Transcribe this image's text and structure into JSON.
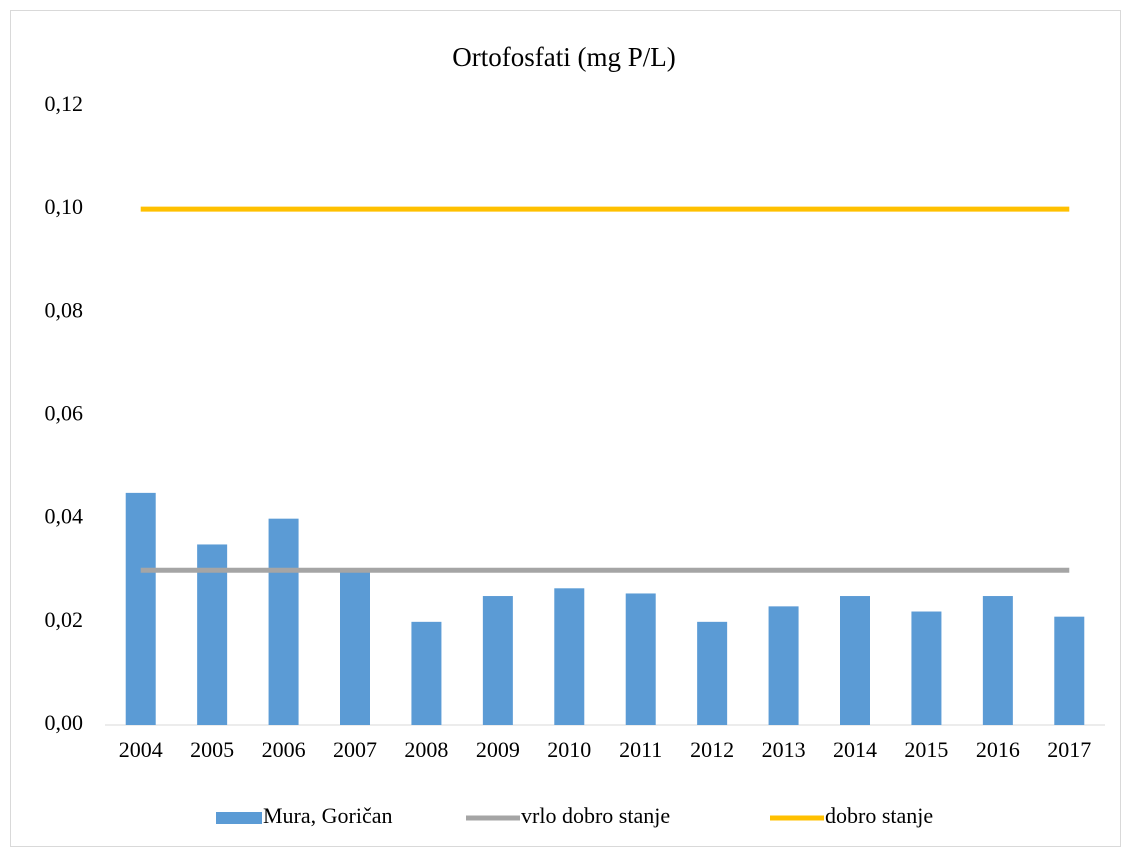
{
  "chart_data": {
    "type": "bar",
    "title": "Ortofosfati (mg P/L)",
    "categories": [
      "2004",
      "2005",
      "2006",
      "2007",
      "2008",
      "2009",
      "2010",
      "2011",
      "2012",
      "2013",
      "2014",
      "2015",
      "2016",
      "2017"
    ],
    "series": [
      {
        "name": "Mura, Goričan",
        "type": "bar",
        "color": "#5b9bd5",
        "values": [
          0.045,
          0.035,
          0.04,
          0.03,
          0.02,
          0.025,
          0.0265,
          0.0255,
          0.02,
          0.023,
          0.025,
          0.022,
          0.025,
          0.021
        ]
      },
      {
        "name": "vrlo dobro stanje",
        "type": "line",
        "color": "#a5a5a5",
        "values": [
          0.03,
          0.03,
          0.03,
          0.03,
          0.03,
          0.03,
          0.03,
          0.03,
          0.03,
          0.03,
          0.03,
          0.03,
          0.03,
          0.03
        ]
      },
      {
        "name": "dobro stanje",
        "type": "line",
        "color": "#ffc000",
        "values": [
          0.1,
          0.1,
          0.1,
          0.1,
          0.1,
          0.1,
          0.1,
          0.1,
          0.1,
          0.1,
          0.1,
          0.1,
          0.1,
          0.1
        ]
      }
    ],
    "ylim": [
      0,
      0.12
    ],
    "yticks": [
      {
        "value": 0,
        "label": "0,00"
      },
      {
        "value": 0.02,
        "label": "0,02"
      },
      {
        "value": 0.04,
        "label": "0,04"
      },
      {
        "value": 0.06,
        "label": "0,06"
      },
      {
        "value": 0.08,
        "label": "0,08"
      },
      {
        "value": 0.1,
        "label": "0,10"
      },
      {
        "value": 0.12,
        "label": "0,12"
      }
    ],
    "grid": false,
    "legend": "bottom"
  }
}
